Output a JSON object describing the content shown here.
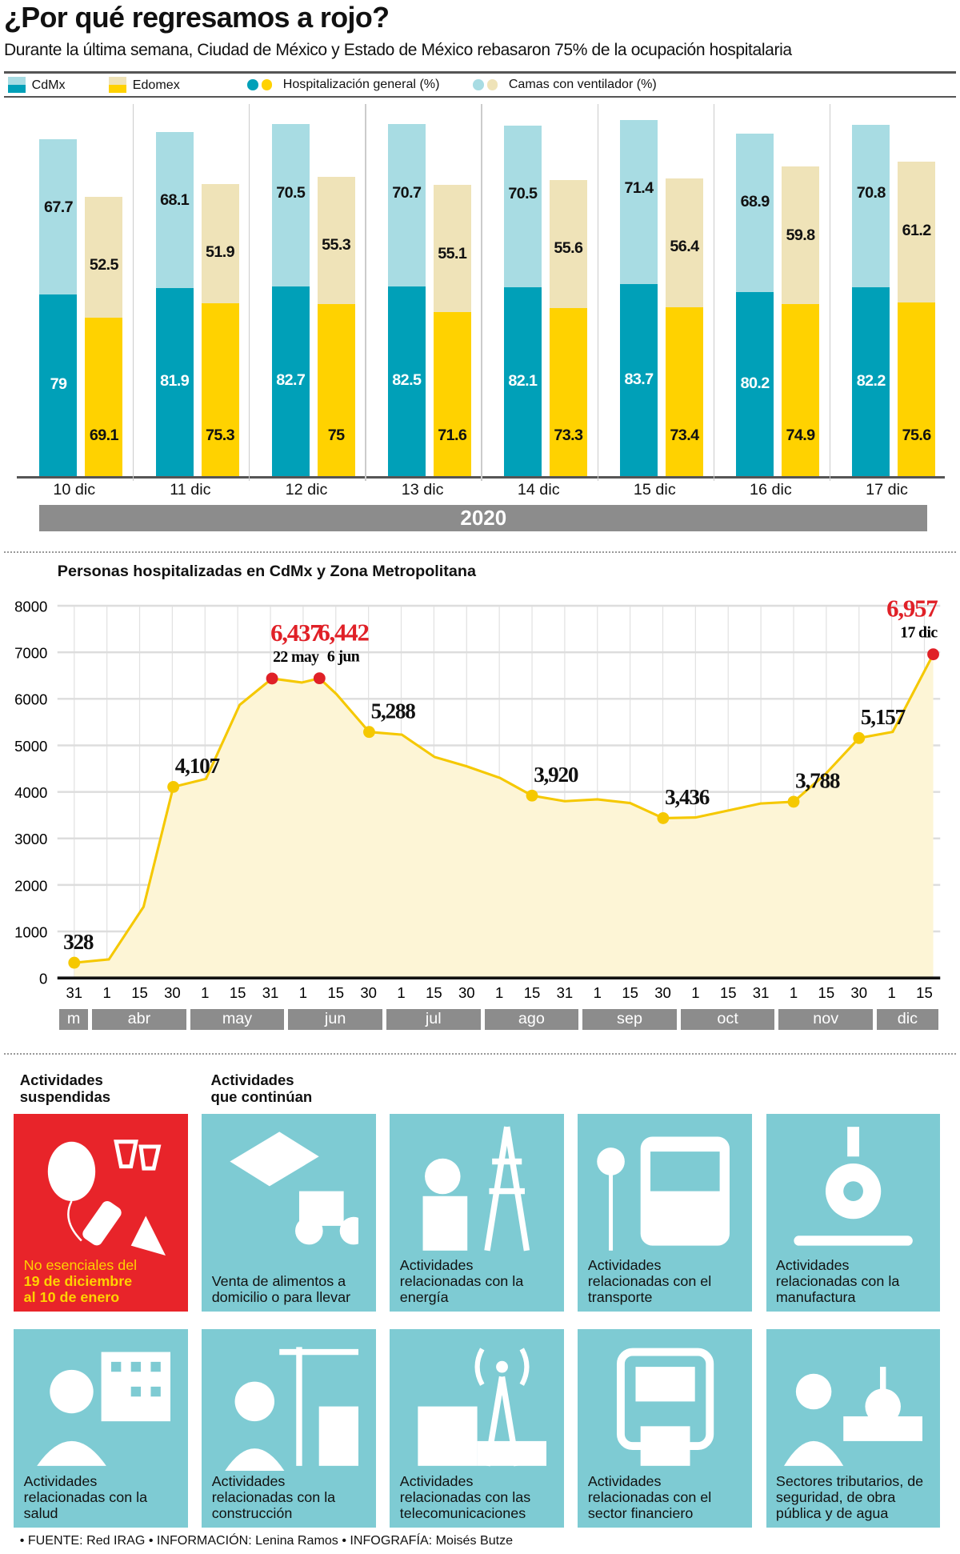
{
  "title": "¿Por qué regresamos a rojo?",
  "subtitle": "Durante la última semana, Ciudad de México y Estado de México rebasaron 75% de la ocupación hospitalaria",
  "legend": {
    "cdmx": "CdMx",
    "edomex": "Edomex",
    "general": "Hospitalización general (%)",
    "ventilador": "Camas con ventilador (%)"
  },
  "colors": {
    "cdmx_dark": "#00a0b8",
    "cdmx_light": "#a8dce3",
    "edomex_dark": "#ffd200",
    "edomex_light": "#efe3b8",
    "red": "#e02027",
    "line": "#f5c800",
    "fill": "#fdf5d6",
    "tile": "#7ecbd3"
  },
  "chart_data": [
    {
      "type": "bar",
      "stacked": true,
      "title": "",
      "year": "2020",
      "categories": [
        "10 dic",
        "11 dic",
        "12 dic",
        "13 dic",
        "14 dic",
        "15 dic",
        "16 dic",
        "17 dic"
      ],
      "series": [
        {
          "name": "CdMx Hospitalización general (%)",
          "values": [
            79,
            81.9,
            82.7,
            82.5,
            82.1,
            83.7,
            80.2,
            82.2
          ]
        },
        {
          "name": "CdMx Camas con ventilador (%)",
          "values": [
            67.7,
            68.1,
            70.5,
            70.7,
            70.5,
            71.4,
            68.9,
            70.8
          ]
        },
        {
          "name": "Edomex Hospitalización general (%)",
          "values": [
            69.1,
            75.3,
            75,
            71.6,
            73.3,
            73.4,
            74.9,
            75.6
          ]
        },
        {
          "name": "Edomex Camas con ventilador (%)",
          "values": [
            52.5,
            51.9,
            55.3,
            55.1,
            55.6,
            56.4,
            59.8,
            61.2
          ]
        }
      ]
    },
    {
      "type": "line",
      "title": "Personas hospitalizadas en CdMx y Zona Metropolitana",
      "ylim": [
        0,
        8000
      ],
      "yticks": [
        "0",
        "1000",
        "2000",
        "3000",
        "4000",
        "5000",
        "6000",
        "7000",
        "8000"
      ],
      "xticks": [
        "31",
        "1",
        "15",
        "30",
        "1",
        "15",
        "31",
        "1",
        "15",
        "30",
        "1",
        "15",
        "30",
        "1",
        "15",
        "31",
        "1",
        "15",
        "30",
        "1",
        "15",
        "31",
        "1",
        "15",
        "30",
        "1",
        "15"
      ],
      "months": [
        {
          "label": "m",
          "span": 1
        },
        {
          "label": "abr",
          "span": 3
        },
        {
          "label": "may",
          "span": 3
        },
        {
          "label": "jun",
          "span": 3
        },
        {
          "label": "jul",
          "span": 3
        },
        {
          "label": "ago",
          "span": 3
        },
        {
          "label": "sep",
          "span": 3
        },
        {
          "label": "oct",
          "span": 3
        },
        {
          "label": "nov",
          "span": 3
        },
        {
          "label": "dic",
          "span": 2
        }
      ],
      "x": [
        0,
        1.06,
        2.12,
        3.03,
        4.03,
        5.06,
        6.05,
        6.96,
        7.5,
        8.02,
        9.02,
        10.02,
        11.02,
        12.0,
        13.02,
        14.0,
        15.0,
        16.0,
        17.0,
        18.01,
        19.0,
        20.0,
        20.99,
        22.0,
        22.97,
        24.0,
        25.03,
        26.27
      ],
      "y": [
        328,
        400,
        1530,
        4107,
        4280,
        5870,
        6437,
        6350,
        6442,
        6100,
        5288,
        5230,
        4750,
        4550,
        4300,
        3920,
        3800,
        3840,
        3760,
        3436,
        3450,
        3600,
        3750,
        3788,
        4380,
        5157,
        5290,
        6957
      ],
      "annotations": [
        {
          "i": 0,
          "label": "328",
          "red": false
        },
        {
          "i": 3,
          "label": "4,107",
          "red": false
        },
        {
          "i": 6,
          "label": "6,437",
          "date": "22 may",
          "red": true
        },
        {
          "i": 8,
          "label": "6,442",
          "date": "6 jun",
          "red": true
        },
        {
          "i": 10,
          "label": "5,288",
          "red": false
        },
        {
          "i": 15,
          "label": "3,920",
          "red": false
        },
        {
          "i": 19,
          "label": "3,436",
          "red": false
        },
        {
          "i": 23,
          "label": "3,788",
          "red": false
        },
        {
          "i": 25,
          "label": "5,157",
          "red": false
        },
        {
          "i": 27,
          "label": "6,957",
          "date": "17 dic",
          "red": true
        }
      ]
    }
  ],
  "activities": {
    "suspended_title": "Actividades suspendidas",
    "continuing_title": "Actividades que continúan",
    "suspended": {
      "line1": "No esenciales del",
      "line2": "19 de diciembre",
      "line3": "al 10 de enero",
      "icon": "party-icon"
    },
    "tiles": [
      {
        "label": "Venta de alimentos a domicilio o para llevar",
        "icon": "delivery-icon"
      },
      {
        "label": "Actividades relacionadas con la energía",
        "icon": "energy-worker-icon"
      },
      {
        "label": "Actividades relacionadas con el transporte",
        "icon": "bus-icon"
      },
      {
        "label": "Actividades relacionadas con la manufactura",
        "icon": "robot-arm-gear-icon"
      },
      {
        "label": "Actividades relacionadas con la salud",
        "icon": "doctor-hospital-icon"
      },
      {
        "label": "Actividades relacionadas con la construcción",
        "icon": "construction-icon"
      },
      {
        "label": "Actividades relacionadas con las telecomunicaciones",
        "icon": "antenna-icon"
      },
      {
        "label": "Actividades relacionadas con el sector financiero",
        "icon": "atm-icon"
      },
      {
        "label": "Sectores tributarios, de seguridad, de obra pública y de agua",
        "icon": "pipe-worker-icon"
      }
    ]
  },
  "footer": "• FUENTE: Red IRAG • INFORMACIÓN: Lenina Ramos • INFOGRAFÍA: Moisés Butze"
}
